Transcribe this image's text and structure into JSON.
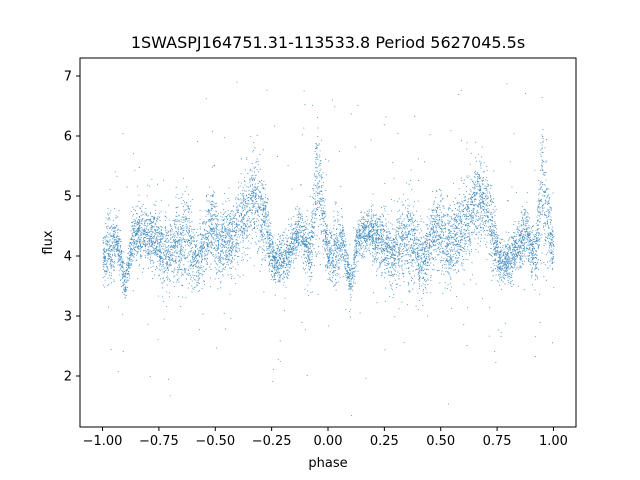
{
  "chart_data": {
    "type": "scatter",
    "title": "1SWASPJ164751.31-113533.8 Period 5627045.5s",
    "xlabel": "phase",
    "ylabel": "flux",
    "xlim": [
      -1.1,
      1.1
    ],
    "ylim": [
      1.15,
      7.3
    ],
    "xticks": [
      -1.0,
      -0.75,
      -0.5,
      -0.25,
      0.0,
      0.25,
      0.5,
      0.75,
      1.0
    ],
    "xtick_labels": [
      "−1.00",
      "−0.75",
      "−0.50",
      "−0.25",
      "0.00",
      "0.25",
      "0.50",
      "0.75",
      "1.00"
    ],
    "yticks": [
      2,
      3,
      4,
      5,
      6,
      7
    ],
    "ytick_labels": [
      "2",
      "3",
      "4",
      "5",
      "6",
      "7"
    ],
    "grid": false,
    "marker_color": "#1f77b4",
    "series": [
      {
        "x_range": [
          -1.0,
          1.0
        ],
        "profile": [
          {
            "x": 0.0,
            "y": 4.0,
            "spread": 0.35
          },
          {
            "x": 0.03,
            "y": 4.1,
            "spread": 0.6
          },
          {
            "x": 0.06,
            "y": 4.3,
            "spread": 0.35
          },
          {
            "x": 0.1,
            "y": 3.5,
            "spread": 0.25
          },
          {
            "x": 0.13,
            "y": 4.3,
            "spread": 0.35
          },
          {
            "x": 0.18,
            "y": 4.4,
            "spread": 0.35
          },
          {
            "x": 0.22,
            "y": 4.3,
            "spread": 0.45
          },
          {
            "x": 0.28,
            "y": 4.0,
            "spread": 0.5
          },
          {
            "x": 0.32,
            "y": 4.2,
            "spread": 0.55
          },
          {
            "x": 0.37,
            "y": 4.3,
            "spread": 0.7
          },
          {
            "x": 0.42,
            "y": 3.9,
            "spread": 0.45
          },
          {
            "x": 0.48,
            "y": 4.5,
            "spread": 0.6
          },
          {
            "x": 0.52,
            "y": 4.2,
            "spread": 0.6
          },
          {
            "x": 0.57,
            "y": 4.3,
            "spread": 0.55
          },
          {
            "x": 0.62,
            "y": 4.6,
            "spread": 0.6
          },
          {
            "x": 0.67,
            "y": 5.0,
            "spread": 0.65
          },
          {
            "x": 0.71,
            "y": 4.7,
            "spread": 0.65
          },
          {
            "x": 0.76,
            "y": 3.9,
            "spread": 0.3
          },
          {
            "x": 0.8,
            "y": 3.9,
            "spread": 0.35
          },
          {
            "x": 0.84,
            "y": 4.2,
            "spread": 0.35
          },
          {
            "x": 0.88,
            "y": 4.4,
            "spread": 0.4
          },
          {
            "x": 0.92,
            "y": 4.0,
            "spread": 0.45
          },
          {
            "x": 0.95,
            "y": 5.3,
            "spread": 1.0
          },
          {
            "x": 1.0,
            "y": 4.0,
            "spread": 0.35
          }
        ],
        "point_count": 9000
      }
    ]
  }
}
